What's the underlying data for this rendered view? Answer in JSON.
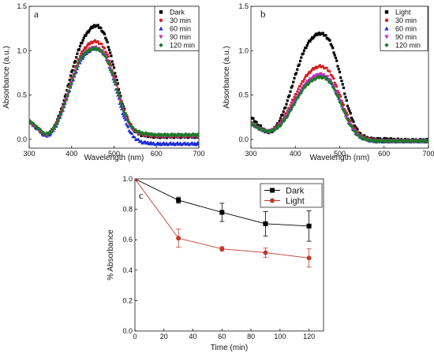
{
  "chart_data": [
    {
      "panel": "a",
      "type": "line",
      "xlabel": "Wavelength (nm)",
      "ylabel": "Absorbance (a.u.)",
      "xlim": [
        300,
        700
      ],
      "ylim": [
        -0.1,
        1.5
      ],
      "xticks": [
        300,
        400,
        500,
        600,
        700
      ],
      "yticks": [
        0.0,
        0.5,
        1.0,
        1.5
      ],
      "legend_position": "top-right",
      "series": [
        {
          "name": "Dark",
          "color": "#000000",
          "marker": "square",
          "x": [
            300,
            320,
            340,
            360,
            380,
            400,
            420,
            440,
            460,
            480,
            500,
            520,
            540,
            560,
            580,
            600,
            650,
            700
          ],
          "y": [
            0.2,
            0.12,
            0.05,
            0.15,
            0.4,
            0.75,
            1.05,
            1.22,
            1.28,
            1.15,
            0.8,
            0.4,
            0.15,
            0.06,
            0.04,
            0.03,
            0.03,
            0.03
          ]
        },
        {
          "name": "30 min",
          "color": "#d62020",
          "marker": "circle",
          "x": [
            300,
            320,
            340,
            360,
            380,
            400,
            420,
            440,
            460,
            480,
            500,
            520,
            540,
            560,
            580,
            600,
            650,
            700
          ],
          "y": [
            0.2,
            0.12,
            0.05,
            0.14,
            0.37,
            0.68,
            0.94,
            1.07,
            1.1,
            1.0,
            0.72,
            0.38,
            0.15,
            0.07,
            0.05,
            0.04,
            0.04,
            0.04
          ]
        },
        {
          "name": "60 min",
          "color": "#1a2bd8",
          "marker": "triangle",
          "x": [
            300,
            320,
            340,
            360,
            380,
            400,
            420,
            440,
            460,
            480,
            500,
            520,
            540,
            560,
            580,
            600,
            650,
            700
          ],
          "y": [
            0.2,
            0.12,
            0.04,
            0.12,
            0.34,
            0.62,
            0.87,
            0.99,
            1.02,
            0.93,
            0.65,
            0.3,
            0.07,
            -0.02,
            -0.04,
            -0.05,
            -0.05,
            -0.05
          ]
        },
        {
          "name": "90 min",
          "color": "#c030c0",
          "marker": "triangle-down",
          "x": [
            300,
            320,
            340,
            360,
            380,
            400,
            420,
            440,
            460,
            480,
            500,
            520,
            540,
            560,
            580,
            600,
            650,
            700
          ],
          "y": [
            0.2,
            0.12,
            0.05,
            0.13,
            0.35,
            0.64,
            0.9,
            1.01,
            1.03,
            0.94,
            0.68,
            0.35,
            0.14,
            0.07,
            0.05,
            0.04,
            0.04,
            0.04
          ]
        },
        {
          "name": "120 min",
          "color": "#1e7a28",
          "marker": "diamond",
          "x": [
            300,
            320,
            340,
            360,
            380,
            400,
            420,
            440,
            460,
            480,
            500,
            520,
            540,
            560,
            580,
            600,
            650,
            700
          ],
          "y": [
            0.21,
            0.13,
            0.06,
            0.14,
            0.35,
            0.64,
            0.9,
            1.0,
            1.02,
            0.93,
            0.68,
            0.36,
            0.15,
            0.08,
            0.06,
            0.05,
            0.05,
            0.05
          ]
        }
      ]
    },
    {
      "panel": "b",
      "type": "line",
      "xlabel": "Wavelength (nm)",
      "ylabel": "Absorbance (a.u.)",
      "xlim": [
        300,
        700
      ],
      "ylim": [
        -0.1,
        1.5
      ],
      "xticks": [
        300,
        400,
        500,
        600,
        700
      ],
      "yticks": [
        0.0,
        0.5,
        1.0,
        1.5
      ],
      "legend_position": "top-right",
      "series": [
        {
          "name": "Light",
          "color": "#000000",
          "marker": "square",
          "x": [
            300,
            320,
            340,
            360,
            380,
            400,
            420,
            440,
            460,
            480,
            500,
            520,
            540,
            560,
            580,
            600,
            650,
            700
          ],
          "y": [
            0.25,
            0.15,
            0.08,
            0.17,
            0.4,
            0.72,
            1.0,
            1.15,
            1.19,
            1.08,
            0.75,
            0.35,
            0.1,
            0.02,
            0.0,
            0.0,
            -0.01,
            -0.01
          ]
        },
        {
          "name": "30 min",
          "color": "#d62020",
          "marker": "circle",
          "x": [
            300,
            320,
            340,
            360,
            380,
            400,
            420,
            440,
            460,
            480,
            500,
            520,
            540,
            560,
            580,
            600,
            650,
            700
          ],
          "y": [
            0.18,
            0.12,
            0.09,
            0.15,
            0.3,
            0.5,
            0.68,
            0.79,
            0.82,
            0.74,
            0.5,
            0.24,
            0.07,
            0.01,
            -0.01,
            -0.02,
            -0.02,
            -0.02
          ]
        },
        {
          "name": "60 min",
          "color": "#1a2bd8",
          "marker": "triangle",
          "x": [
            300,
            320,
            340,
            360,
            380,
            400,
            420,
            440,
            460,
            480,
            500,
            520,
            540,
            560,
            580,
            600,
            650,
            700
          ],
          "y": [
            0.18,
            0.12,
            0.09,
            0.14,
            0.26,
            0.44,
            0.6,
            0.69,
            0.72,
            0.65,
            0.44,
            0.2,
            0.05,
            0.0,
            -0.02,
            -0.02,
            -0.02,
            -0.02
          ]
        },
        {
          "name": "90 min",
          "color": "#c030c0",
          "marker": "triangle-down",
          "x": [
            300,
            320,
            340,
            360,
            380,
            400,
            420,
            440,
            460,
            480,
            500,
            520,
            540,
            560,
            580,
            600,
            650,
            700
          ],
          "y": [
            0.18,
            0.12,
            0.09,
            0.14,
            0.27,
            0.45,
            0.61,
            0.7,
            0.73,
            0.66,
            0.45,
            0.21,
            0.06,
            0.0,
            -0.02,
            -0.02,
            -0.02,
            -0.02
          ]
        },
        {
          "name": "120 min",
          "color": "#1e7a28",
          "marker": "diamond",
          "x": [
            300,
            320,
            340,
            360,
            380,
            400,
            420,
            440,
            460,
            480,
            500,
            520,
            540,
            560,
            580,
            600,
            650,
            700
          ],
          "y": [
            0.18,
            0.12,
            0.09,
            0.13,
            0.25,
            0.42,
            0.58,
            0.67,
            0.7,
            0.63,
            0.43,
            0.2,
            0.05,
            0.0,
            -0.02,
            -0.02,
            -0.02,
            -0.02
          ]
        }
      ]
    },
    {
      "panel": "c",
      "type": "line",
      "xlabel": "Time (min)",
      "ylabel": "% Absorbance",
      "xlim": [
        0,
        130
      ],
      "ylim": [
        0.0,
        1.0
      ],
      "xticks": [
        0,
        20,
        40,
        60,
        80,
        100,
        120
      ],
      "yticks": [
        0.0,
        0.2,
        0.4,
        0.6,
        0.8,
        1.0
      ],
      "legend_position": "top-right",
      "series": [
        {
          "name": "Dark",
          "color": "#000000",
          "marker": "square",
          "x": [
            0,
            30,
            60,
            90,
            120
          ],
          "y": [
            1.0,
            0.86,
            0.78,
            0.705,
            0.69
          ],
          "err": [
            0,
            0.02,
            0.06,
            0.08,
            0.1
          ]
        },
        {
          "name": "Light",
          "color": "#c0392b",
          "marker": "circle",
          "x": [
            0,
            30,
            60,
            90,
            120
          ],
          "y": [
            1.0,
            0.61,
            0.54,
            0.515,
            0.48
          ],
          "err": [
            0,
            0.06,
            0.015,
            0.03,
            0.06
          ]
        }
      ]
    }
  ],
  "labels": {
    "a": "a",
    "b": "b",
    "c": "c"
  }
}
